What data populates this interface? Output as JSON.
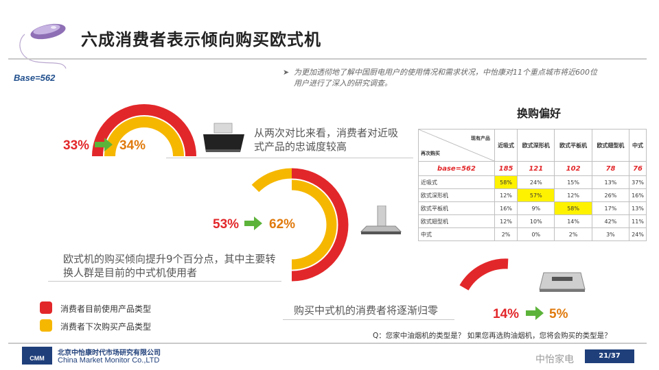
{
  "slide": {
    "title": "六成消费者表示倾向购买欧式机",
    "base": "Base=562",
    "intro": "为更加透彻地了解中国厨电用户的使用情况和需求状况，中怡康对11个重点城市将近600位用户进行了深入的研究调查。",
    "question": "Q：您家中油烟机的类型是？ 如果您再选购油烟机，您将会购买的类型是？",
    "page": "21/37",
    "watermark": "中怡家电"
  },
  "colors": {
    "current": "#e2272a",
    "next": "#f6b700",
    "arrow": "#5cb33a",
    "accent_blue": "#1f3f7a"
  },
  "groups": [
    {
      "name": "near-suction",
      "from": "33%",
      "to": "34%",
      "from_value": 33,
      "to_value": 34,
      "note": "从两次对比来看，消费者对近吸式产品的忠诚度较高"
    },
    {
      "name": "european",
      "from": "53%",
      "to": "62%",
      "from_value": 53,
      "to_value": 62,
      "note": "欧式机的购买倾向提升9个百分点，其中主要转换人群是目前的中式机使用者"
    },
    {
      "name": "chinese",
      "from": "14%",
      "to": "5%",
      "from_value": 14,
      "to_value": 5,
      "note": "购买中式机的消费者将逐渐归零"
    }
  ],
  "legend": [
    {
      "label": "消费者目前使用产品类型",
      "color": "#e2272a"
    },
    {
      "label": "消费者下次购买产品类型",
      "color": "#f6b700"
    }
  ],
  "table": {
    "title": "换购偏好",
    "corner_top": "现有产品",
    "corner_bottom": "再次购买",
    "columns": [
      "近吸式",
      "欧式深形机",
      "欧式平板机",
      "欧式翅型机",
      "中式"
    ],
    "base_label": "base=562",
    "base_values": [
      "185",
      "121",
      "102",
      "78",
      "76"
    ],
    "rows": [
      {
        "label": "近吸式",
        "values": [
          "58%",
          "24%",
          "15%",
          "13%",
          "37%"
        ],
        "highlight": 0
      },
      {
        "label": "欧式深形机",
        "values": [
          "12%",
          "57%",
          "12%",
          "26%",
          "16%"
        ],
        "highlight": 1
      },
      {
        "label": "欧式平板机",
        "values": [
          "16%",
          "9%",
          "58%",
          "17%",
          "13%"
        ],
        "highlight": 2
      },
      {
        "label": "欧式翅型机",
        "values": [
          "12%",
          "10%",
          "14%",
          "42%",
          "11%"
        ],
        "highlight": -1
      },
      {
        "label": "中式",
        "values": [
          "2%",
          "0%",
          "2%",
          "3%",
          "24%"
        ],
        "highlight": -1
      }
    ]
  },
  "footer": {
    "company_cn": "北京中怡康时代市场研究有限公司",
    "company_en": "China Market Monitor Co.,LTD",
    "logo": "CMM"
  }
}
